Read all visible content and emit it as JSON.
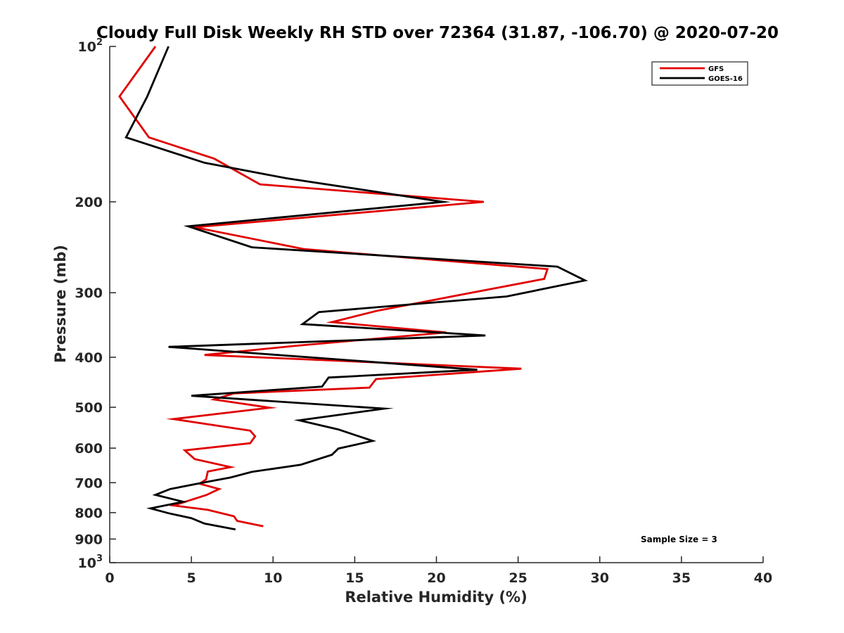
{
  "chart_data": {
    "type": "line",
    "title": "Cloudy Full Disk Weekly RH STD over 72364 (31.87, -106.70) @ 2020-07-20",
    "xlabel": "Relative Humidity (%)",
    "ylabel": "Pressure (mb)",
    "xlim": [
      0,
      40
    ],
    "ylim": [
      100,
      1000
    ],
    "y_scale": "log",
    "y_reversed": true,
    "x_ticks": [
      "0",
      "5",
      "10",
      "15",
      "20",
      "25",
      "30",
      "35",
      "40"
    ],
    "y_ticks": [
      {
        "value": 100,
        "label": "10",
        "sup": "2"
      },
      {
        "value": 200,
        "label": "200",
        "sup": ""
      },
      {
        "value": 300,
        "label": "300",
        "sup": ""
      },
      {
        "value": 400,
        "label": "400",
        "sup": ""
      },
      {
        "value": 500,
        "label": "500",
        "sup": ""
      },
      {
        "value": 600,
        "label": "600",
        "sup": ""
      },
      {
        "value": 700,
        "label": "700",
        "sup": ""
      },
      {
        "value": 800,
        "label": "800",
        "sup": ""
      },
      {
        "value": 900,
        "label": "900",
        "sup": ""
      },
      {
        "value": 1000,
        "label": "10",
        "sup": "3"
      }
    ],
    "grid": false,
    "legend_position": "top-right",
    "annotation": "Sample Size = 3",
    "series": [
      {
        "name": "GFS",
        "color": "#e00000",
        "points": [
          [
            2.8,
            100
          ],
          [
            0.6,
            125
          ],
          [
            2.4,
            150
          ],
          [
            6.4,
            165
          ],
          [
            9.2,
            185
          ],
          [
            22.9,
            200
          ],
          [
            5.2,
            224
          ],
          [
            11.9,
            247
          ],
          [
            26.8,
            270
          ],
          [
            26.6,
            282
          ],
          [
            16.4,
            325
          ],
          [
            13.6,
            342
          ],
          [
            20.6,
            358
          ],
          [
            11.4,
            380
          ],
          [
            5.8,
            396
          ],
          [
            25.2,
            421
          ],
          [
            16.3,
            441
          ],
          [
            15.9,
            458
          ],
          [
            7.6,
            470
          ],
          [
            6.4,
            483
          ],
          [
            9.8,
            501
          ],
          [
            3.9,
            527
          ],
          [
            8.6,
            555
          ],
          [
            8.9,
            569
          ],
          [
            8.6,
            587
          ],
          [
            4.6,
            606
          ],
          [
            5.2,
            630
          ],
          [
            7.4,
            653
          ],
          [
            6.0,
            666
          ],
          [
            5.9,
            690
          ],
          [
            5.5,
            703
          ],
          [
            6.7,
            720
          ],
          [
            5.9,
            740
          ],
          [
            3.9,
            775
          ],
          [
            6.0,
            790
          ],
          [
            7.6,
            813
          ],
          [
            7.8,
            830
          ],
          [
            9.4,
            850
          ]
        ]
      },
      {
        "name": "GOES-16",
        "color": "#000000",
        "points": [
          [
            3.6,
            100
          ],
          [
            2.3,
            125
          ],
          [
            1.0,
            150
          ],
          [
            5.8,
            168
          ],
          [
            10.8,
            180
          ],
          [
            20.4,
            200
          ],
          [
            4.8,
            223
          ],
          [
            8.7,
            245
          ],
          [
            27.4,
            267
          ],
          [
            29.1,
            284
          ],
          [
            24.3,
            305
          ],
          [
            12.8,
            327
          ],
          [
            11.8,
            345
          ],
          [
            23.0,
            363
          ],
          [
            3.6,
            382
          ],
          [
            22.5,
            423
          ],
          [
            13.4,
            438
          ],
          [
            13.0,
            456
          ],
          [
            5.0,
            475
          ],
          [
            16.8,
            503
          ],
          [
            11.6,
            530
          ],
          [
            14.0,
            552
          ],
          [
            16.1,
            581
          ],
          [
            14.0,
            601
          ],
          [
            13.6,
            618
          ],
          [
            11.7,
            646
          ],
          [
            8.7,
            667
          ],
          [
            7.4,
            684
          ],
          [
            5.7,
            700
          ],
          [
            3.7,
            720
          ],
          [
            2.8,
            739
          ],
          [
            4.5,
            762
          ],
          [
            2.5,
            785
          ],
          [
            3.6,
            802
          ],
          [
            5.0,
            820
          ],
          [
            5.8,
            840
          ],
          [
            7.7,
            862
          ]
        ]
      }
    ]
  }
}
